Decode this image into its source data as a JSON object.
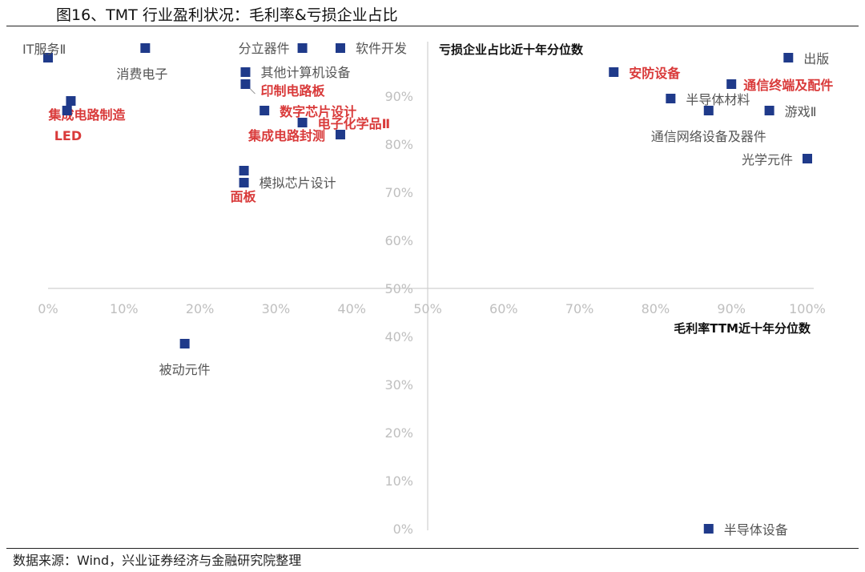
{
  "figure": {
    "title": "图16、TMT 行业盈利状况：毛利率&亏损企业占比",
    "source": "数据来源：Wind，兴业证券经济与金融研究院整理"
  },
  "chart_data": {
    "type": "scatter",
    "xlabel": "毛利率TTM近十年分位数",
    "ylabel": "亏损企业占比近十年分位数",
    "xlim": [
      0,
      100
    ],
    "ylim": [
      0,
      100
    ],
    "x_ticks": [
      "0%",
      "10%",
      "20%",
      "30%",
      "40%",
      "50%",
      "60%",
      "70%",
      "80%",
      "90%",
      "100%"
    ],
    "y_ticks": [
      "0%",
      "10%",
      "20%",
      "30%",
      "40%",
      "50%",
      "60%",
      "70%",
      "80%",
      "90%"
    ],
    "highlight_color": "#d93a3a",
    "normal_color": "#555555",
    "marker_color": "#1f3a8a",
    "points": [
      {
        "name": "IT服务Ⅱ",
        "x": 0,
        "y": 98,
        "highlight": false
      },
      {
        "name": "集成电路制造",
        "x": 3,
        "y": 89,
        "highlight": true
      },
      {
        "name": "LED",
        "x": 2.5,
        "y": 87,
        "highlight": true
      },
      {
        "name": "消费电子",
        "x": 12.8,
        "y": 100,
        "highlight": false
      },
      {
        "name": "分立器件",
        "x": 33.5,
        "y": 100,
        "highlight": false
      },
      {
        "name": "软件开发",
        "x": 38.5,
        "y": 100,
        "highlight": false
      },
      {
        "name": "其他计算机设备",
        "x": 26,
        "y": 95,
        "highlight": false
      },
      {
        "name": "印制电路板",
        "x": 26,
        "y": 92.5,
        "highlight": true
      },
      {
        "name": "数字芯片设计",
        "x": 28.5,
        "y": 87,
        "highlight": true
      },
      {
        "name": "电子化学品Ⅱ",
        "x": 33.5,
        "y": 84.5,
        "highlight": true
      },
      {
        "name": "集成电路封测",
        "x": 38.5,
        "y": 82,
        "highlight": true
      },
      {
        "name": "面板",
        "x": 25.8,
        "y": 74.5,
        "highlight": true
      },
      {
        "name": "模拟芯片设计",
        "x": 25.8,
        "y": 72,
        "highlight": false
      },
      {
        "name": "被动元件",
        "x": 18,
        "y": 38.5,
        "highlight": false
      },
      {
        "name": "安防设备",
        "x": 74.5,
        "y": 95,
        "highlight": true
      },
      {
        "name": "出版",
        "x": 97.5,
        "y": 98,
        "highlight": false
      },
      {
        "name": "通信终端及配件",
        "x": 90,
        "y": 92.5,
        "highlight": true
      },
      {
        "name": "半导体材料",
        "x": 82,
        "y": 89.5,
        "highlight": false
      },
      {
        "name": "游戏Ⅱ",
        "x": 95,
        "y": 87,
        "highlight": false
      },
      {
        "name": "通信网络设备及器件",
        "x": 87,
        "y": 87,
        "highlight": false
      },
      {
        "name": "光学元件",
        "x": 100,
        "y": 77,
        "highlight": false
      },
      {
        "name": "半导体设备",
        "x": 87,
        "y": 0,
        "highlight": false
      }
    ]
  }
}
